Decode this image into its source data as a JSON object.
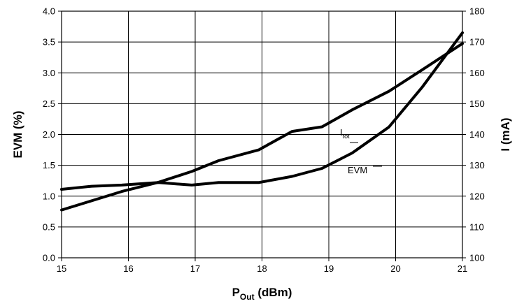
{
  "chart_data": {
    "type": "line",
    "xlabel": {
      "main": "P",
      "sub": "Out",
      "rest": " (dBm)"
    },
    "ylabel_left": "EVM (%)",
    "ylabel_right": "I (mA)",
    "xlim": [
      15,
      21
    ],
    "xticks": [
      "15",
      "16",
      "17",
      "18",
      "19",
      "20",
      "21"
    ],
    "ylim_left": [
      0,
      4
    ],
    "yticks_left": [
      "0.0",
      "0.5",
      "1.0",
      "1.5",
      "2.0",
      "2.5",
      "3.0",
      "3.5",
      "4.0"
    ],
    "ylim_right": [
      100,
      180
    ],
    "yticks_right": [
      "100",
      "110",
      "120",
      "130",
      "140",
      "150",
      "160",
      "170",
      "180"
    ],
    "grid": true,
    "series": [
      {
        "name": "EVM",
        "axis": "left",
        "x": [
          15,
          15.45,
          15.9,
          16.45,
          16.95,
          17.35,
          17.95,
          18.45,
          18.9,
          19.35,
          19.9,
          20.4,
          21
        ],
        "y": [
          1.11,
          1.16,
          1.18,
          1.22,
          1.18,
          1.22,
          1.22,
          1.32,
          1.45,
          1.7,
          2.12,
          2.77,
          3.65
        ]
      },
      {
        "name_main": "I",
        "name_sub": "tot",
        "axis": "right",
        "x": [
          15,
          15.45,
          15.9,
          16.45,
          16.95,
          17.35,
          17.95,
          18.45,
          18.9,
          19.35,
          19.9,
          20.4,
          21
        ],
        "y": [
          115.5,
          118.5,
          121.5,
          124.5,
          128,
          131.5,
          135,
          141,
          142.5,
          148,
          154,
          161,
          169.5
        ]
      }
    ]
  }
}
